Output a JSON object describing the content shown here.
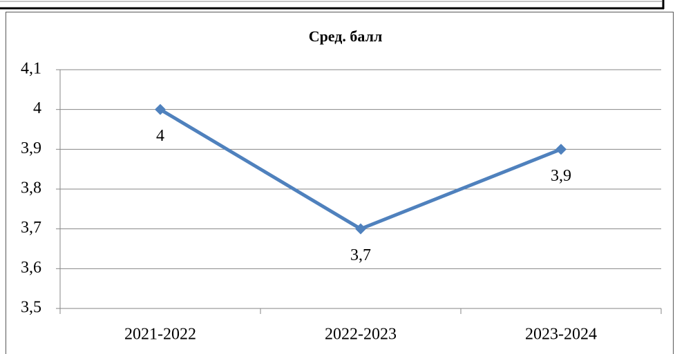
{
  "chart_data": {
    "type": "line",
    "title": "Сред. балл",
    "categories": [
      "2021-2022",
      "2022-2023",
      "2023-2024"
    ],
    "values": [
      4,
      3.7,
      3.9
    ],
    "value_labels": [
      "4",
      "3,7",
      "3,9"
    ],
    "color": "#4f81bd",
    "ylim": [
      3.5,
      4.1
    ],
    "yticks": [
      {
        "value": 3.5,
        "label": "3,5"
      },
      {
        "value": 3.6,
        "label": "3,6"
      },
      {
        "value": 3.7,
        "label": "3,7"
      },
      {
        "value": 3.8,
        "label": "3,8"
      },
      {
        "value": 3.9,
        "label": "3,9"
      },
      4,
      {
        "value": 4.1,
        "label": "4,1"
      }
    ],
    "grid": true
  }
}
